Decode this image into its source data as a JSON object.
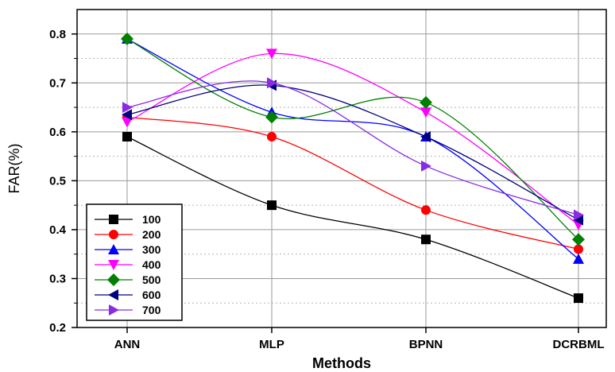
{
  "chart_data": {
    "type": "line",
    "title": "",
    "xlabel": "Methods",
    "ylabel": "FAR(%)",
    "categories": [
      "ANN",
      "MLP",
      "BPNN",
      "DCRBML"
    ],
    "ylim": [
      0.2,
      0.85
    ],
    "yticks": [
      "0.2",
      "0.3",
      "0.4",
      "0.5",
      "0.6",
      "0.7",
      "0.8"
    ],
    "grid": "both",
    "legend_position": "bottom-left",
    "series": [
      {
        "name": "100",
        "values": [
          0.59,
          0.45,
          0.38,
          0.26
        ],
        "color": "#000000",
        "marker": "square"
      },
      {
        "name": "200",
        "values": [
          0.63,
          0.59,
          0.44,
          0.36
        ],
        "color": "#ff0000",
        "marker": "circle"
      },
      {
        "name": "300",
        "values": [
          0.79,
          0.64,
          0.59,
          0.34
        ],
        "color": "#0000ff",
        "marker": "triangle-up"
      },
      {
        "name": "400",
        "values": [
          0.62,
          0.76,
          0.64,
          0.41
        ],
        "color": "#ff00ff",
        "marker": "triangle-down"
      },
      {
        "name": "500",
        "values": [
          0.79,
          0.63,
          0.66,
          0.38
        ],
        "color": "#008000",
        "marker": "diamond"
      },
      {
        "name": "600",
        "values": [
          0.635,
          0.695,
          0.59,
          0.42
        ],
        "color": "#000080",
        "marker": "triangle-left"
      },
      {
        "name": "700",
        "values": [
          0.65,
          0.7,
          0.53,
          0.43
        ],
        "color": "#8a2be2",
        "marker": "triangle-right"
      }
    ]
  }
}
